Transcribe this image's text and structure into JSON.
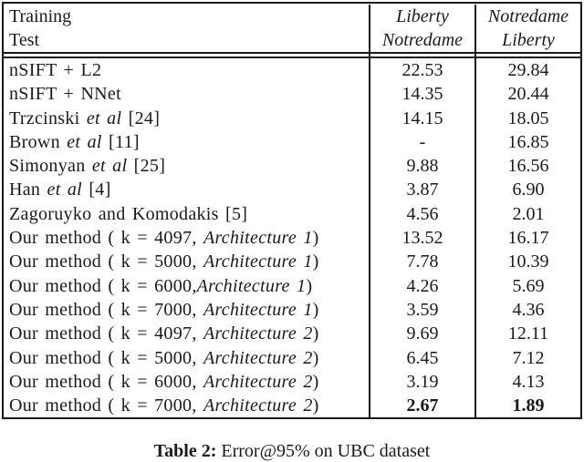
{
  "table": {
    "header": {
      "col_method": {
        "line1": "Training",
        "line2": "Test"
      },
      "col_a": {
        "line1": "Liberty",
        "line2": "Notredame"
      },
      "col_b": {
        "line1": "Notredame",
        "line2": "Liberty"
      }
    },
    "rows": [
      {
        "pre": "nSIFT + L2",
        "it": "",
        "post": "",
        "a": "22.53",
        "b": "29.84"
      },
      {
        "pre": "nSIFT + NNet",
        "it": "",
        "post": "",
        "a": "14.35",
        "b": "20.44"
      },
      {
        "pre": "Trzcinski ",
        "it": "et al",
        "post": " [24]",
        "a": "14.15",
        "b": "18.05"
      },
      {
        "pre": "Brown ",
        "it": "et al",
        "post": " [11]",
        "a": "-",
        "b": "16.85"
      },
      {
        "pre": "Simonyan ",
        "it": "et al",
        "post": " [25]",
        "a": "9.88",
        "b": "16.56"
      },
      {
        "pre": "Han ",
        "it": "et al",
        "post": " [4]",
        "a": "3.87",
        "b": "6.90"
      },
      {
        "pre": "Zagoruyko and Komodakis [5]",
        "it": "",
        "post": "",
        "a": "4.56",
        "b": "2.01"
      },
      {
        "pre": "Our method ( k = 4097, ",
        "it": "Architecture 1",
        "post": ")",
        "a": "13.52",
        "b": "16.17"
      },
      {
        "pre": "Our method ( k = 5000, ",
        "it": "Architecture 1",
        "post": ")",
        "a": "7.78",
        "b": "10.39"
      },
      {
        "pre": "Our method ( k = 6000,",
        "it": "Architecture 1",
        "post": ")",
        "a": "4.26",
        "b": "5.69"
      },
      {
        "pre": "Our method ( k = 7000, ",
        "it": "Architecture 1",
        "post": ")",
        "a": "3.59",
        "b": "4.36"
      },
      {
        "pre": "Our method ( k = 4097, ",
        "it": "Architecture 2",
        "post": ")",
        "a": "9.69",
        "b": "12.11"
      },
      {
        "pre": "Our method ( k = 5000, ",
        "it": "Architecture 2",
        "post": ")",
        "a": "6.45",
        "b": "7.12"
      },
      {
        "pre": "Our method ( k = 6000, ",
        "it": "Architecture 2",
        "post": ")",
        "a": "3.19",
        "b": "4.13"
      },
      {
        "pre": "Our method ( k = 7000, ",
        "it": "Architecture 2",
        "post": ")",
        "a": "2.67",
        "b": "1.89",
        "bold": true
      }
    ]
  },
  "caption": {
    "label": "Table 2:",
    "text": " Error@95% on UBC dataset"
  },
  "colors": {
    "text": "#1a1a1a",
    "border": "#1a1a1a",
    "background": "#ffffff"
  }
}
